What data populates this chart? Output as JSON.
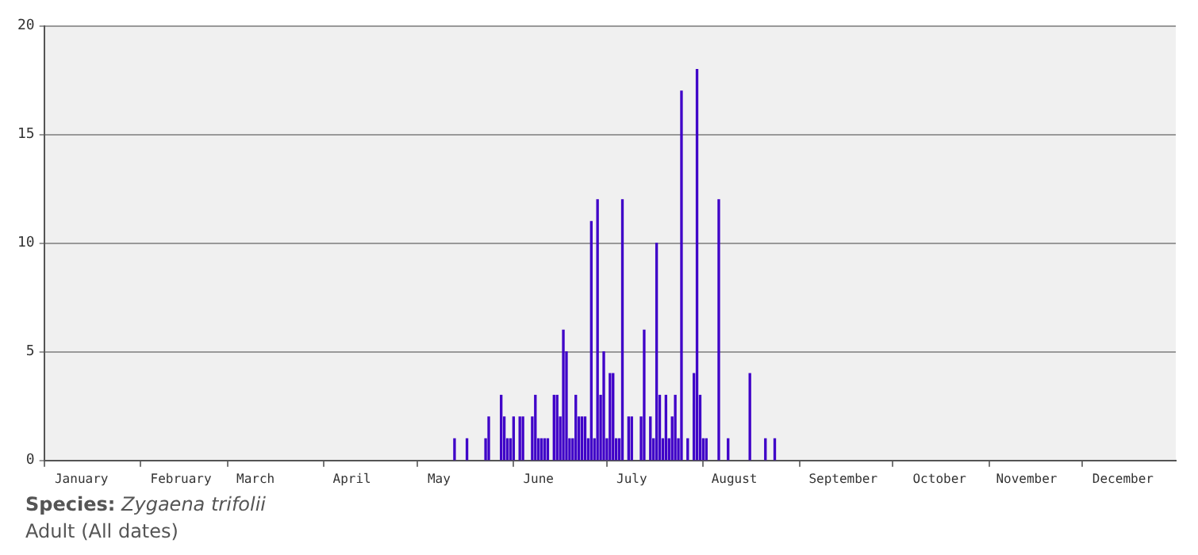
{
  "chart_data": {
    "type": "bar",
    "color": "#3f00c8",
    "x": [
      "--05-13",
      "--05-17",
      "--05-23",
      "--05-24",
      "--05-28",
      "--05-29",
      "--05-30",
      "--05-31",
      "--06-01",
      "--06-03",
      "--06-04",
      "--06-07",
      "--06-08",
      "--06-09",
      "--06-10",
      "--06-11",
      "--06-12",
      "--06-14",
      "--06-15",
      "--06-16",
      "--06-17",
      "--06-18",
      "--06-19",
      "--06-20",
      "--06-21",
      "--06-22",
      "--06-23",
      "--06-24",
      "--06-25",
      "--06-26",
      "--06-27",
      "--06-28",
      "--06-29",
      "--06-30",
      "--07-01",
      "--07-02",
      "--07-03",
      "--07-04",
      "--07-05",
      "--07-06",
      "--07-08",
      "--07-09",
      "--07-12",
      "--07-13",
      "--07-15",
      "--07-16",
      "--07-17",
      "--07-18",
      "--07-19",
      "--07-20",
      "--07-21",
      "--07-22",
      "--07-23",
      "--07-24",
      "--07-25",
      "--07-27",
      "--07-29",
      "--07-30",
      "--07-31",
      "--08-01",
      "--08-02",
      "--08-06",
      "--08-09",
      "--08-16",
      "--08-21",
      "--08-24"
    ],
    "values": [
      1,
      1,
      1,
      2,
      3,
      2,
      1,
      1,
      2,
      2,
      2,
      2,
      3,
      1,
      1,
      1,
      1,
      3,
      3,
      2,
      6,
      5,
      1,
      1,
      3,
      2,
      2,
      2,
      1,
      11,
      1,
      12,
      3,
      5,
      1,
      4,
      4,
      1,
      1,
      12,
      2,
      2,
      2,
      6,
      2,
      1,
      10,
      3,
      1,
      3,
      1,
      2,
      3,
      1,
      17,
      1,
      4,
      18,
      3,
      1,
      1,
      12,
      1,
      4,
      1,
      1
    ],
    "xlim": [
      "--01-01",
      "--12-31"
    ],
    "xticks": [
      {
        "value": "--01-01",
        "label": null
      },
      {
        "value": "--01-13",
        "label": "January"
      },
      {
        "value": "--02-01",
        "label": null
      },
      {
        "value": "--02-14",
        "label": "February"
      },
      {
        "value": "--03-01",
        "label": null
      },
      {
        "value": "--03-10",
        "label": "March"
      },
      {
        "value": "--04-01",
        "label": null
      },
      {
        "value": "--04-10",
        "label": "April"
      },
      {
        "value": "--05-01",
        "label": null
      },
      {
        "value": "--05-08",
        "label": "May"
      },
      {
        "value": "--06-01",
        "label": null
      },
      {
        "value": "--06-09",
        "label": "June"
      },
      {
        "value": "--07-01",
        "label": null
      },
      {
        "value": "--07-09",
        "label": "July"
      },
      {
        "value": "--08-01",
        "label": null
      },
      {
        "value": "--08-11",
        "label": "August"
      },
      {
        "value": "--09-01",
        "label": null
      },
      {
        "value": "--09-15",
        "label": "September"
      },
      {
        "value": "--10-01",
        "label": null
      },
      {
        "value": "--10-16",
        "label": "October"
      },
      {
        "value": "--11-01",
        "label": null
      },
      {
        "value": "--11-13",
        "label": "November"
      },
      {
        "value": "--12-01",
        "label": null
      },
      {
        "value": "--12-14",
        "label": "December"
      }
    ],
    "ylim": [
      0,
      20
    ],
    "yticks": [
      0,
      5,
      10,
      15,
      20
    ],
    "grid": "y",
    "annotations": [
      "Species: Zygaena trifolii",
      "Adult (All dates)"
    ]
  }
}
